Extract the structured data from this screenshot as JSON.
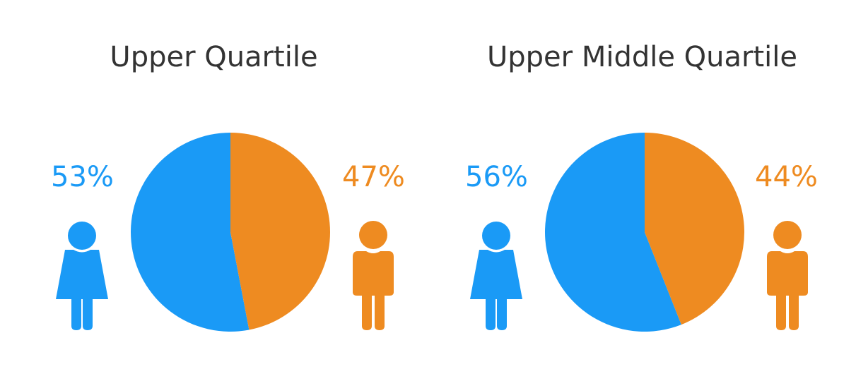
{
  "colors": {
    "female": "#1a9af6",
    "male": "#ee8b21",
    "title": "#333333"
  },
  "chart_data": [
    {
      "type": "pie",
      "title": "Upper Quartile",
      "slices": [
        {
          "label": "53%",
          "value": 53,
          "color": "#1a9af6",
          "icon": "female-person-icon"
        },
        {
          "label": "47%",
          "value": 47,
          "color": "#ee8b21",
          "icon": "male-person-icon"
        }
      ]
    },
    {
      "type": "pie",
      "title": "Upper Middle Quartile",
      "slices": [
        {
          "label": "56%",
          "value": 56,
          "color": "#1a9af6",
          "icon": "female-person-icon"
        },
        {
          "label": "44%",
          "value": 44,
          "color": "#ee8b21",
          "icon": "male-person-icon"
        }
      ]
    }
  ]
}
